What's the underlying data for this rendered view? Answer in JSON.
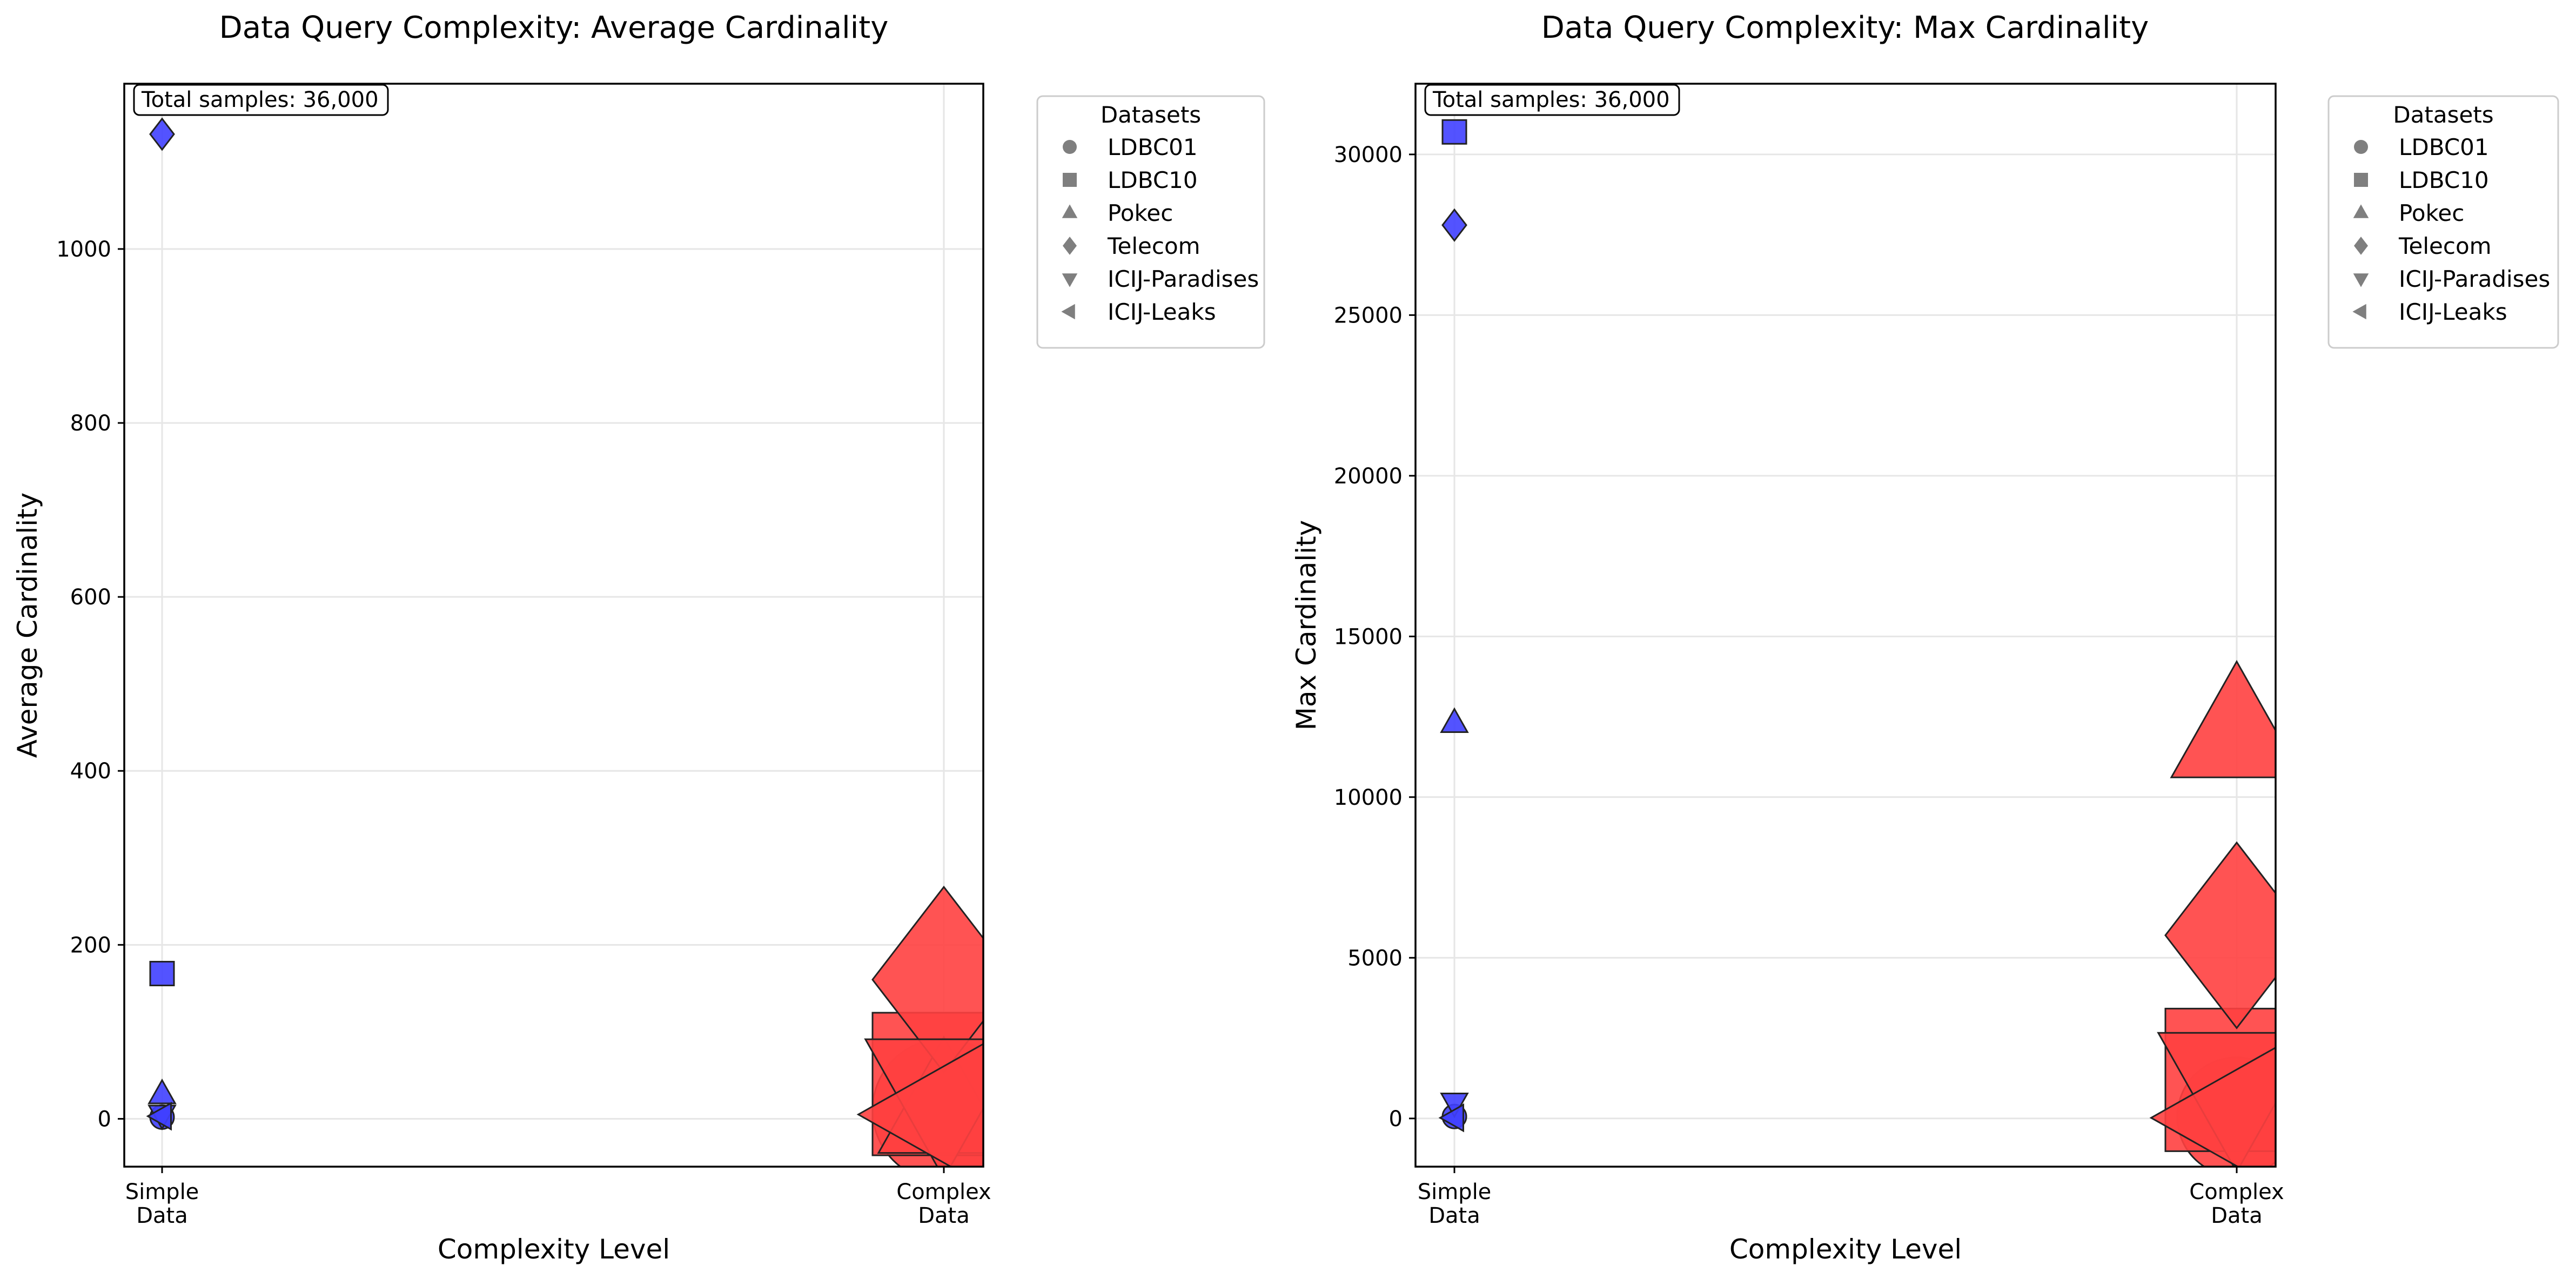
{
  "chart_data": [
    {
      "type": "scatter",
      "title": "Data Query Complexity: Average Cardinality",
      "xlabel": "Complexity Level",
      "ylabel": "Average Cardinality",
      "categories": [
        "Simple\nData",
        "Complex\nData"
      ],
      "ylim": [
        -55,
        1190
      ],
      "yticks": [
        0,
        200,
        400,
        600,
        800,
        1000
      ],
      "grid": true,
      "annotation": "Total samples: 36,000",
      "legend": {
        "title": "Datasets",
        "placement": "outside right",
        "entries": [
          {
            "label": "LDBC01",
            "marker": "circle"
          },
          {
            "label": "LDBC10",
            "marker": "square"
          },
          {
            "label": "Pokec",
            "marker": "triangle-up"
          },
          {
            "label": "Telecom",
            "marker": "diamond"
          },
          {
            "label": "ICIJ-Paradises",
            "marker": "triangle-down"
          },
          {
            "label": "ICIJ-Leaks",
            "marker": "triangle-left"
          }
        ]
      },
      "series": [
        {
          "marker": "circle",
          "values": [
            2,
            10
          ],
          "sizes": [
            1,
            6
          ]
        },
        {
          "marker": "square",
          "values": [
            167,
            40
          ],
          "sizes": [
            1,
            6
          ]
        },
        {
          "marker": "triangle-up",
          "values": [
            28,
            12
          ],
          "sizes": [
            1,
            5
          ]
        },
        {
          "marker": "diamond",
          "values": [
            1132,
            160
          ],
          "sizes": [
            1,
            6
          ]
        },
        {
          "marker": "triangle-down",
          "values": [
            5,
            30
          ],
          "sizes": [
            1,
            6
          ]
        },
        {
          "marker": "triangle-left",
          "values": [
            3,
            5
          ],
          "sizes": [
            1,
            6
          ]
        }
      ],
      "colors": {
        "Simple\nData": "#4040ff",
        "Complex\nData": "#ff4040"
      }
    },
    {
      "type": "scatter",
      "title": "Data Query Complexity: Max Cardinality",
      "xlabel": "Complexity Level",
      "ylabel": "Max Cardinality",
      "categories": [
        "Simple\nData",
        "Complex\nData"
      ],
      "ylim": [
        -1500,
        32200
      ],
      "yticks": [
        0,
        5000,
        10000,
        15000,
        20000,
        25000,
        30000
      ],
      "grid": true,
      "annotation": "Total samples: 36,000",
      "legend": {
        "title": "Datasets",
        "placement": "outside right",
        "entries": [
          {
            "label": "LDBC01",
            "marker": "circle"
          },
          {
            "label": "LDBC10",
            "marker": "square"
          },
          {
            "label": "Pokec",
            "marker": "triangle-up"
          },
          {
            "label": "Telecom",
            "marker": "diamond"
          },
          {
            "label": "ICIJ-Paradises",
            "marker": "triangle-down"
          },
          {
            "label": "ICIJ-Leaks",
            "marker": "triangle-left"
          }
        ]
      },
      "series": [
        {
          "marker": "circle",
          "values": [
            60,
            50
          ],
          "sizes": [
            1,
            5
          ]
        },
        {
          "marker": "square",
          "values": [
            30700,
            1200
          ],
          "sizes": [
            1,
            6
          ]
        },
        {
          "marker": "triangle-up",
          "values": [
            12300,
            12000
          ],
          "sizes": [
            1,
            5
          ]
        },
        {
          "marker": "diamond",
          "values": [
            27800,
            5700
          ],
          "sizes": [
            1,
            6
          ]
        },
        {
          "marker": "triangle-down",
          "values": [
            500,
            1000
          ],
          "sizes": [
            1,
            6
          ]
        },
        {
          "marker": "triangle-left",
          "values": [
            20,
            20
          ],
          "sizes": [
            1,
            6
          ]
        }
      ],
      "colors": {
        "Simple\nData": "#4040ff",
        "Complex\nData": "#ff4040"
      }
    }
  ]
}
